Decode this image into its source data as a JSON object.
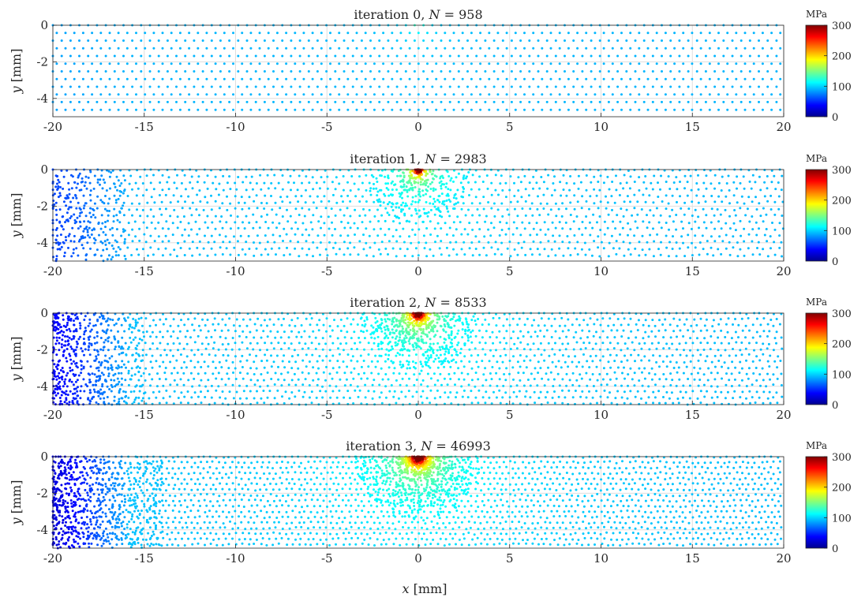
{
  "chart_data": [
    {
      "type": "scatter",
      "title_prefix": "iteration 0, ",
      "title_var": "N",
      "title_eq": " = 958",
      "iteration": 0,
      "N": 958,
      "ylabel_var": "y",
      "ylabel_unit": " [mm]",
      "xlim": [
        -20,
        20
      ],
      "ylim": [
        -5,
        0
      ],
      "xticks": [
        "-20",
        "-15",
        "-10",
        "-5",
        "0",
        "5",
        "10",
        "15",
        "20"
      ],
      "yticks": [
        "0",
        "-2",
        "-4"
      ],
      "grid": true,
      "colorbar": {
        "unit": "MPa",
        "range": [
          0,
          300
        ],
        "ticks": [
          "300",
          "200",
          "100",
          "0"
        ],
        "colormap": "jet"
      }
    },
    {
      "type": "scatter",
      "title_prefix": "iteration 1, ",
      "title_var": "N",
      "title_eq": " = 2983",
      "iteration": 1,
      "N": 2983,
      "ylabel_var": "y",
      "ylabel_unit": " [mm]",
      "xlim": [
        -20,
        20
      ],
      "ylim": [
        -5,
        0
      ],
      "xticks": [
        "-20",
        "-15",
        "-10",
        "-5",
        "0",
        "5",
        "10",
        "15",
        "20"
      ],
      "yticks": [
        "0",
        "-2",
        "-4"
      ],
      "grid": true,
      "colorbar": {
        "unit": "MPa",
        "range": [
          0,
          300
        ],
        "ticks": [
          "300",
          "200",
          "100",
          "0"
        ],
        "colormap": "jet"
      }
    },
    {
      "type": "scatter",
      "title_prefix": "iteration 2, ",
      "title_var": "N",
      "title_eq": " = 8533",
      "iteration": 2,
      "N": 8533,
      "ylabel_var": "y",
      "ylabel_unit": " [mm]",
      "xlim": [
        -20,
        20
      ],
      "ylim": [
        -5,
        0
      ],
      "xticks": [
        "-20",
        "-15",
        "-10",
        "-5",
        "0",
        "5",
        "10",
        "15",
        "20"
      ],
      "yticks": [
        "0",
        "-2",
        "-4"
      ],
      "grid": true,
      "colorbar": {
        "unit": "MPa",
        "range": [
          0,
          300
        ],
        "ticks": [
          "300",
          "200",
          "100",
          "0"
        ],
        "colormap": "jet"
      }
    },
    {
      "type": "scatter",
      "title_prefix": "iteration 3, ",
      "title_var": "N",
      "title_eq": " = 46993",
      "iteration": 3,
      "N": 46993,
      "ylabel_var": "y",
      "ylabel_unit": " [mm]",
      "xlim": [
        -20,
        20
      ],
      "ylim": [
        -5,
        0
      ],
      "xticks": [
        "-20",
        "-15",
        "-10",
        "-5",
        "0",
        "5",
        "10",
        "15",
        "20"
      ],
      "yticks": [
        "0",
        "-2",
        "-4"
      ],
      "grid": true,
      "colorbar": {
        "unit": "MPa",
        "range": [
          0,
          300
        ],
        "ticks": [
          "300",
          "200",
          "100",
          "0"
        ],
        "colormap": "jet"
      }
    }
  ],
  "xlabel_var": "x",
  "xlabel_unit": " [mm]"
}
